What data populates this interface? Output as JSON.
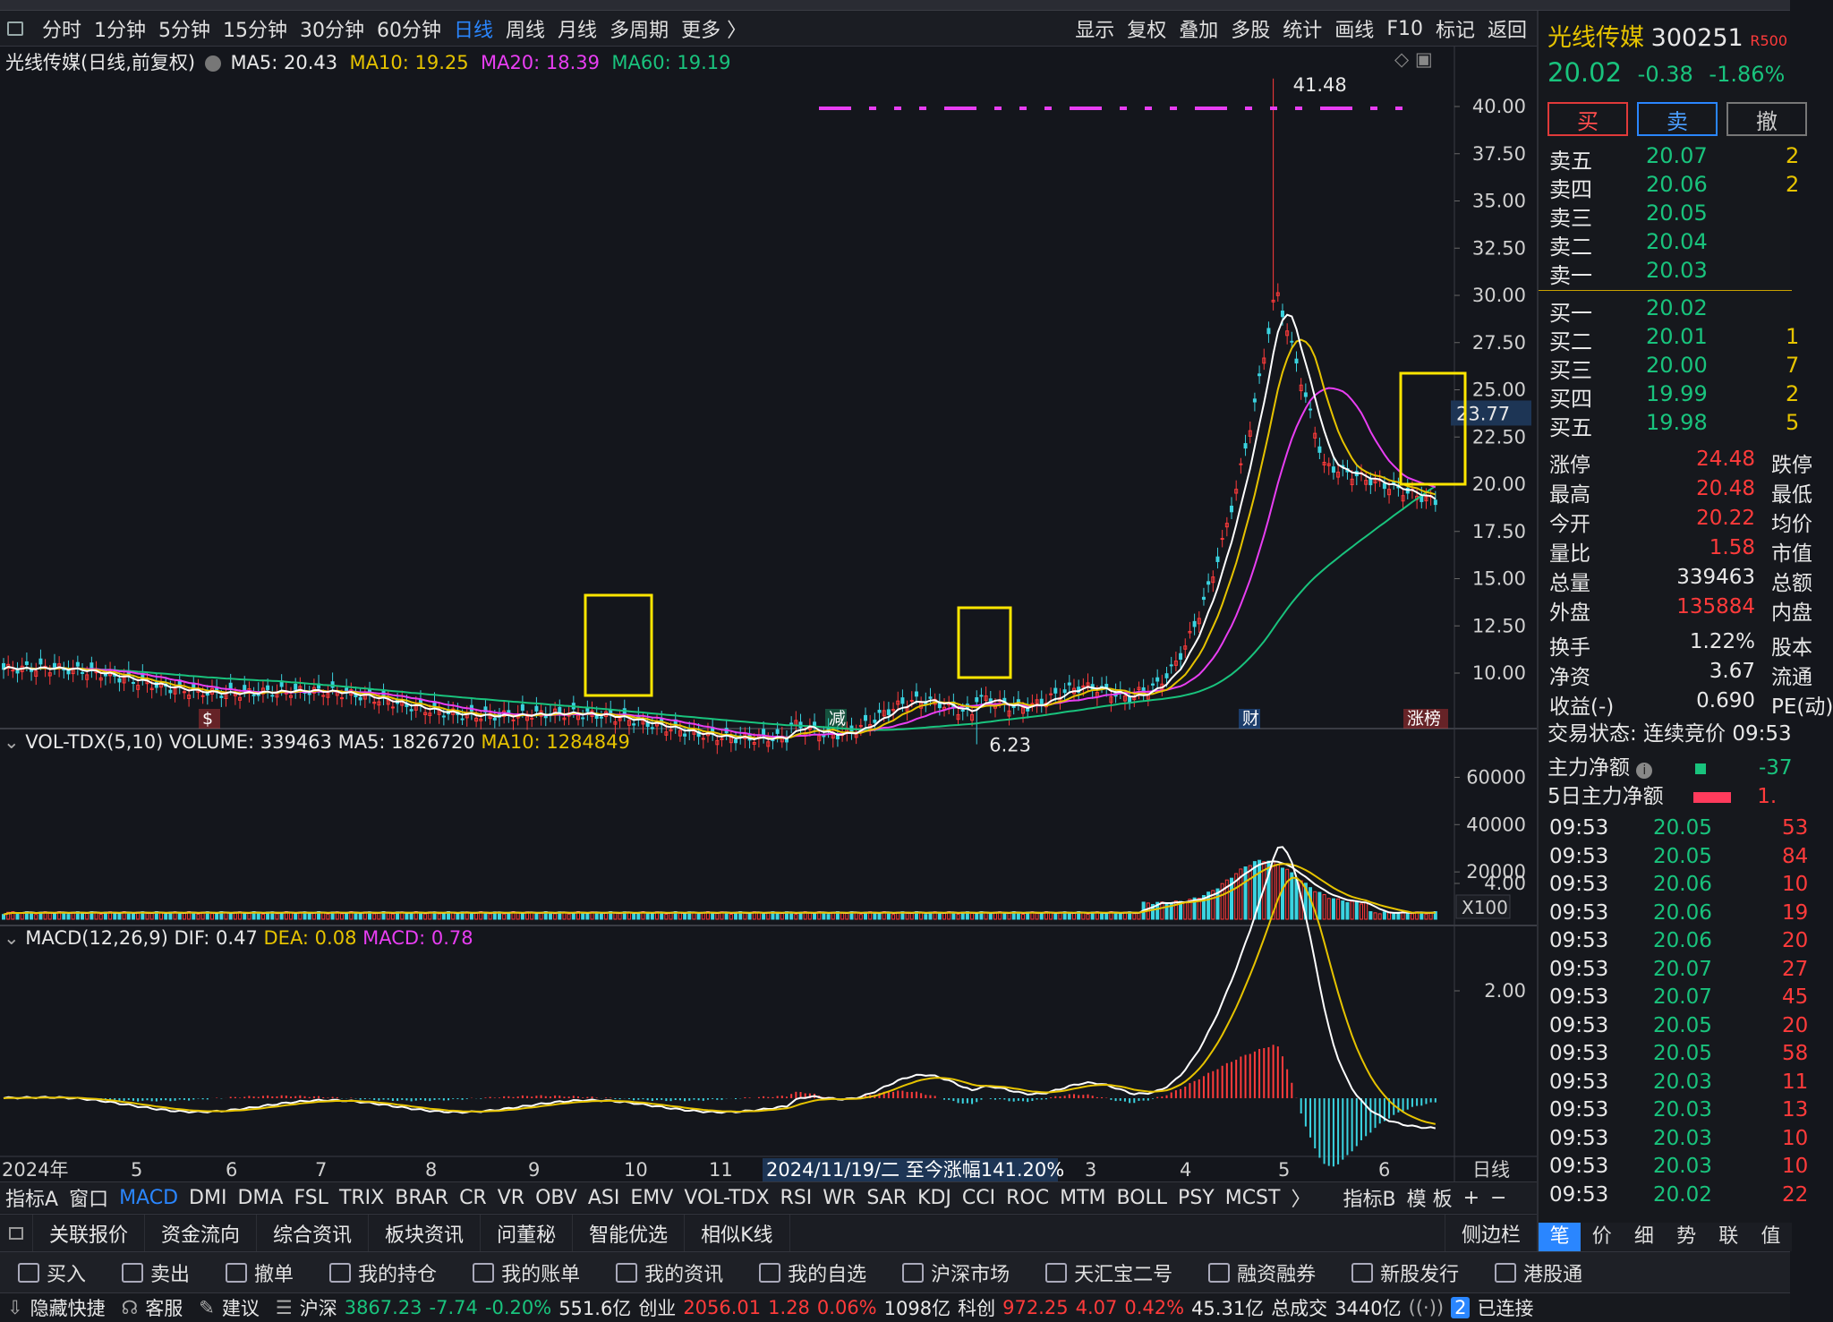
{
  "toolbar": {
    "periods": [
      "分时",
      "1分钟",
      "5分钟",
      "15分钟",
      "30分钟",
      "60分钟",
      "日线",
      "周线",
      "月线",
      "多周期",
      "更多 〉"
    ],
    "active_period": "日线",
    "right": [
      "显示",
      "复权",
      "叠加",
      "多股",
      "统计",
      "画线",
      "F10",
      "标记",
      "返回"
    ]
  },
  "main_legend": {
    "title": "光线传媒(日线,前复权)",
    "ma5": "MA5: 20.43",
    "ma10": "MA10: 19.25",
    "ma20": "MA20: 18.39",
    "ma60": "MA60: 19.19"
  },
  "price_axis": [
    "40.00",
    "37.50",
    "35.00",
    "32.50",
    "30.00",
    "27.50",
    "25.00",
    "22.50",
    "20.00",
    "17.50",
    "15.00",
    "12.50",
    "10.00"
  ],
  "price_marks": {
    "high": "41.48",
    "low": "6.23",
    "current": "23.77"
  },
  "event_tags": [
    "$",
    "减",
    "财",
    "涨榜"
  ],
  "vol_legend": {
    "title": "VOL-TDX(5,10)",
    "volume": "VOLUME: 339463",
    "ma5": "MA5: 1826720",
    "ma10": "MA10: 1284849"
  },
  "vol_axis": [
    "60000",
    "40000",
    "20000"
  ],
  "vol_unit": "X100",
  "macd_legend": {
    "title": "MACD(12,26,9)",
    "dif": "DIF: 0.47",
    "dea": "DEA: 0.08",
    "macd": "MACD: 0.78"
  },
  "macd_axis": [
    "4.00",
    "2.00"
  ],
  "date_axis": {
    "year": "2024年",
    "months": [
      "5",
      "6",
      "7",
      "8",
      "9",
      "10",
      "11",
      "3",
      "4",
      "5",
      "6"
    ],
    "cursor": "2024/11/19/二  至今涨幅141.20%",
    "period": "日线"
  },
  "indicator_tabs": [
    "指标A",
    "窗口",
    "MACD",
    "DMI",
    "DMA",
    "FSL",
    "TRIX",
    "BRAR",
    "CR",
    "VR",
    "OBV",
    "ASI",
    "EMV",
    "VOL-TDX",
    "RSI",
    "WR",
    "SAR",
    "KDJ",
    "CCI",
    "ROC",
    "MTM",
    "BOLL",
    "PSY",
    "MCST",
    "〉",
    "指标B",
    "模 板",
    "+",
    "−"
  ],
  "active_indicator": "MACD",
  "func_tabs": [
    "关联报价",
    "资金流向",
    "综合资讯",
    "板块资讯",
    "问董秘",
    "智能优选",
    "相似K线"
  ],
  "side_label": "侧边栏",
  "actions": [
    "买入",
    "卖出",
    "撤单",
    "我的持仓",
    "我的账单",
    "我的资讯",
    "我的自选",
    "沪深市场",
    "天汇宝二号",
    "融资融券",
    "新股发行",
    "港股通"
  ],
  "status": {
    "hide": "隐藏快捷",
    "service": "客服",
    "suggest": "建议",
    "sh_label": "沪深",
    "sh_val": "3867.23",
    "sh_chg": "-7.74",
    "sh_pct": "-0.20%",
    "sh_amt": "551.6亿",
    "cy_label": "创业",
    "cy_val": "2056.01",
    "cy_chg": "1.28",
    "cy_pct": "0.06%",
    "cy_amt": "1098亿",
    "kc_label": "科创",
    "kc_val": "972.25",
    "kc_chg": "4.07",
    "kc_pct": "0.42%",
    "kc_amt": "45.31亿",
    "total_label": "总成交",
    "total_val": "3440亿",
    "conn_count": "2",
    "conn": "已连接"
  },
  "stock": {
    "name": "光线传媒",
    "code": "300251",
    "badge": "R500",
    "price": "20.02",
    "chg": "-0.38",
    "pct": "-1.86%"
  },
  "trade_buttons": {
    "buy": "买",
    "sell": "卖",
    "cancel": "撤"
  },
  "asks": [
    {
      "l": "卖五",
      "p": "20.07",
      "v": "2"
    },
    {
      "l": "卖四",
      "p": "20.06",
      "v": "2"
    },
    {
      "l": "卖三",
      "p": "20.05",
      "v": ""
    },
    {
      "l": "卖二",
      "p": "20.04",
      "v": ""
    },
    {
      "l": "卖一",
      "p": "20.03",
      "v": ""
    }
  ],
  "bids": [
    {
      "l": "买一",
      "p": "20.02",
      "v": ""
    },
    {
      "l": "买二",
      "p": "20.01",
      "v": "1"
    },
    {
      "l": "买三",
      "p": "20.00",
      "v": "7"
    },
    {
      "l": "买四",
      "p": "19.99",
      "v": "2"
    },
    {
      "l": "买五",
      "p": "19.98",
      "v": "5"
    }
  ],
  "stats": [
    {
      "l": "涨停",
      "v": "24.48",
      "r": "跌停",
      "c": "red"
    },
    {
      "l": "最高",
      "v": "20.48",
      "r": "最低",
      "c": "red"
    },
    {
      "l": "今开",
      "v": "20.22",
      "r": "均价",
      "c": "red"
    },
    {
      "l": "量比",
      "v": "1.58",
      "r": "市值",
      "c": "red"
    },
    {
      "l": "总量",
      "v": "339463",
      "r": "总额",
      "c": "white"
    },
    {
      "l": "外盘",
      "v": "135884",
      "r": "内盘",
      "c": "red"
    }
  ],
  "stats2": [
    {
      "l": "换手",
      "v": "1.22%",
      "r": "股本"
    },
    {
      "l": "净资",
      "v": "3.67",
      "r": "流通"
    },
    {
      "l": "收益(-)",
      "v": "0.690",
      "r": "PE(动)"
    }
  ],
  "trade_state": "交易状态: 连续竞价 09:53",
  "main_net": {
    "l": "主力净额",
    "v": "-37"
  },
  "main_net5": {
    "l": "5日主力净额",
    "v": "1."
  },
  "ticks": [
    {
      "t": "09:53",
      "p": "20.05",
      "v": "53"
    },
    {
      "t": "09:53",
      "p": "20.05",
      "v": "84"
    },
    {
      "t": "09:53",
      "p": "20.06",
      "v": "10"
    },
    {
      "t": "09:53",
      "p": "20.06",
      "v": "19"
    },
    {
      "t": "09:53",
      "p": "20.06",
      "v": "20"
    },
    {
      "t": "09:53",
      "p": "20.07",
      "v": "27"
    },
    {
      "t": "09:53",
      "p": "20.07",
      "v": "45"
    },
    {
      "t": "09:53",
      "p": "20.05",
      "v": "20"
    },
    {
      "t": "09:53",
      "p": "20.05",
      "v": "58"
    },
    {
      "t": "09:53",
      "p": "20.03",
      "v": "11"
    },
    {
      "t": "09:53",
      "p": "20.03",
      "v": "13"
    },
    {
      "t": "09:53",
      "p": "20.03",
      "v": "10"
    },
    {
      "t": "09:53",
      "p": "20.03",
      "v": "10"
    },
    {
      "t": "09:53",
      "p": "20.02",
      "v": "22"
    }
  ],
  "right_tabs": [
    "笔",
    "价",
    "细",
    "势",
    "联",
    "值"
  ]
}
